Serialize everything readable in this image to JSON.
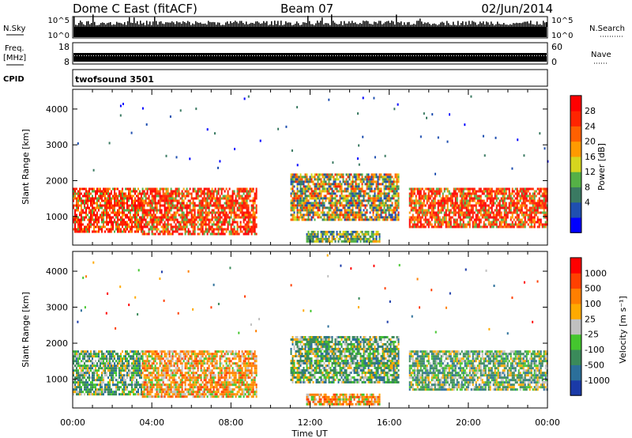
{
  "header": {
    "station": "Dome C East (fitACF)",
    "beam": "Beam 07",
    "date": "02/Jun/2014"
  },
  "strips": {
    "nsky_label": "N.Sky",
    "nsky_ticks": [
      "10^5",
      "10^0"
    ],
    "nsearch_label": "N.Search",
    "freq_label_1": "Freq.",
    "freq_label_2": "[MHz]",
    "freq_ticks": [
      "18",
      "8"
    ],
    "nave_ticks": [
      "60",
      "0"
    ],
    "nave_label": "Nave",
    "cpid_label": "CPID",
    "cpid_value": "twofsound 3501"
  },
  "chart_data": [
    {
      "type": "heatmap",
      "panel": "power",
      "ylabel": "Slant Range [km]",
      "xlabel": "Time UT",
      "x_ticks": [
        "00:00",
        "04:00",
        "08:00",
        "12:00",
        "16:00",
        "20:00",
        "00:00"
      ],
      "x_range_hours": [
        0,
        24
      ],
      "y_ticks": [
        1000,
        2000,
        3000,
        4000
      ],
      "y_range_km": [
        200,
        4550
      ],
      "colorbar": {
        "label": "Power [dB]",
        "ticks": [
          "28",
          "24",
          "20",
          "16",
          "12",
          "8",
          "4"
        ],
        "colors": [
          "#0000ff",
          "#1f4fb0",
          "#3a7a62",
          "#55b046",
          "#d6d61e",
          "#ff9a00",
          "#ff6000",
          "#ff2400",
          "#ff0000"
        ]
      },
      "echo_regions": [
        {
          "t0": 0.0,
          "t1": 3.5,
          "r0": 600,
          "r1": 1800,
          "level": "high"
        },
        {
          "t0": 3.5,
          "t1": 9.3,
          "r0": 500,
          "r1": 1800,
          "level": "high"
        },
        {
          "t0": 11.0,
          "t1": 16.5,
          "r0": 900,
          "r1": 2200,
          "level": "mid"
        },
        {
          "t0": 11.8,
          "t1": 15.5,
          "r0": 300,
          "r1": 600,
          "level": "low"
        },
        {
          "t0": 17.0,
          "t1": 24.0,
          "r0": 700,
          "r1": 1800,
          "level": "high"
        }
      ]
    },
    {
      "type": "heatmap",
      "panel": "velocity",
      "ylabel": "Slant Range [km]",
      "xlabel": "Time UT",
      "x_ticks": [
        "00:00",
        "04:00",
        "08:00",
        "12:00",
        "16:00",
        "20:00",
        "00:00"
      ],
      "x_range_hours": [
        0,
        24
      ],
      "y_ticks": [
        1000,
        2000,
        3000,
        4000
      ],
      "y_range_km": [
        200,
        4550
      ],
      "colorbar": {
        "label": "Velocity [m s⁻¹]",
        "ticks": [
          "1000",
          "500",
          "100",
          "25",
          "-25",
          "-100",
          "-500",
          "-1000"
        ],
        "colors": [
          "#1a3aa8",
          "#2b6f9a",
          "#3a8a5a",
          "#44c62e",
          "#c0c0c0",
          "#ffaa00",
          "#ff7f00",
          "#ff4000",
          "#ff0000"
        ]
      },
      "echo_regions": [
        {
          "t0": 0.0,
          "t1": 3.5,
          "r0": 600,
          "r1": 1800,
          "level": "toward"
        },
        {
          "t0": 3.5,
          "t1": 9.3,
          "r0": 500,
          "r1": 1800,
          "level": "away"
        },
        {
          "t0": 11.0,
          "t1": 16.5,
          "r0": 900,
          "r1": 2200,
          "level": "toward"
        },
        {
          "t0": 11.8,
          "t1": 15.5,
          "r0": 300,
          "r1": 600,
          "level": "away"
        },
        {
          "t0": 17.0,
          "t1": 24.0,
          "r0": 700,
          "r1": 1800,
          "level": "toward"
        }
      ]
    }
  ]
}
